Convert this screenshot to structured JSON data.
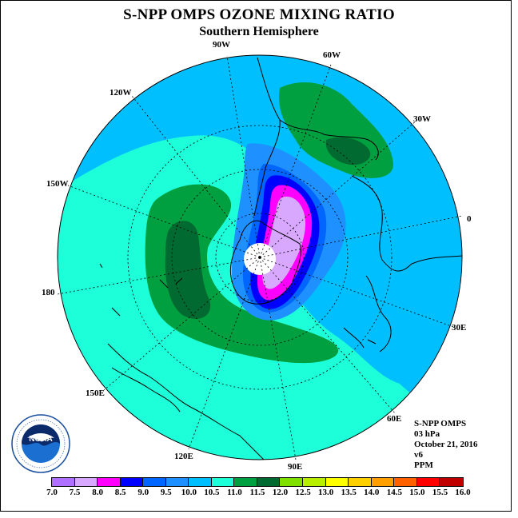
{
  "title": "S-NPP OMPS OZONE MIXING RATIO",
  "subtitle": "Southern Hemisphere",
  "lon_labels": {
    "w90": "90W",
    "w60": "60W",
    "w30": "30W",
    "w120": "120W",
    "w150": "150W",
    "e0": "0",
    "d180": "180",
    "e30": "30E",
    "e60": "60E",
    "e90": "90E",
    "e120": "120E",
    "e150": "150E"
  },
  "info": {
    "instrument": "S-NPP OMPS",
    "level": "03 hPa",
    "date": "October 21, 2016",
    "version": "v6",
    "units": "PPM"
  },
  "logo": {
    "text": "NOAA"
  },
  "colorbar": {
    "labels": [
      "7.0",
      "7.5",
      "8.0",
      "8.5",
      "9.0",
      "9.5",
      "10.0",
      "10.5",
      "11.0",
      "11.5",
      "12.0",
      "12.5",
      "13.0",
      "13.5",
      "14.0",
      "14.5",
      "15.0",
      "15.5",
      "16.0"
    ],
    "colors": [
      "#b070ff",
      "#d8a8ff",
      "#ff00ff",
      "#0000ff",
      "#0066ff",
      "#1e90ff",
      "#00bfff",
      "#1cffd8",
      "#00a040",
      "#006a30",
      "#80e000",
      "#b8ee00",
      "#ffff00",
      "#ffd000",
      "#ffa000",
      "#ff6000",
      "#ff0000",
      "#c00000",
      "#80502a"
    ]
  }
}
